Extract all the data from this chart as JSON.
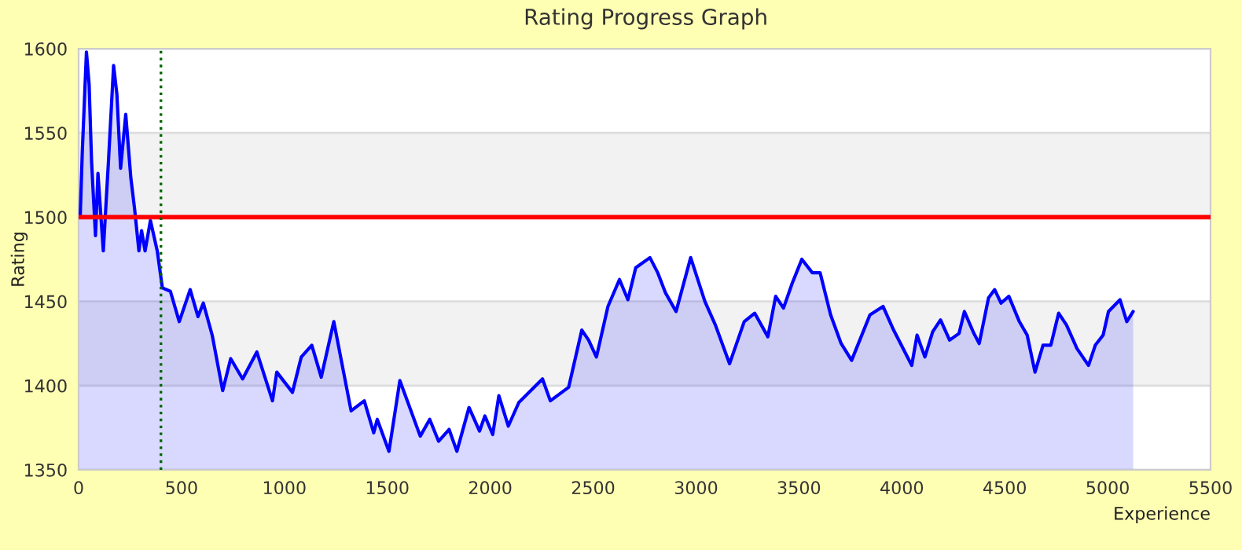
{
  "chart_data": {
    "type": "area",
    "title": "Rating Progress Graph",
    "xlabel": "Experience",
    "ylabel": "Rating",
    "xlim": [
      0,
      5500
    ],
    "xticks": [
      0,
      500,
      1000,
      1500,
      2000,
      2500,
      3000,
      3500,
      4000,
      4500,
      5000,
      5500
    ],
    "ylim": [
      1350,
      1600
    ],
    "yticks": [
      1350,
      1400,
      1450,
      1500,
      1550,
      1600
    ],
    "grid": "y",
    "ref_lines": [
      {
        "axis": "y",
        "value": 1500,
        "color": "#ff0000",
        "line_style": "solid"
      },
      {
        "axis": "x",
        "value": 400,
        "color": "#006400",
        "line_style": "dotted"
      }
    ],
    "bands": [
      {
        "axis": "y",
        "from": 1400,
        "to": 1450,
        "color": "#f2f2f2"
      },
      {
        "axis": "y",
        "from": 1500,
        "to": 1550,
        "color": "#f2f2f2"
      }
    ],
    "series": [
      {
        "color": "#0000ff",
        "x": [
          0,
          8,
          18,
          38,
          51,
          63,
          82,
          94,
          120,
          145,
          170,
          186,
          204,
          229,
          254,
          272,
          293,
          306,
          323,
          349,
          382,
          407,
          446,
          489,
          542,
          580,
          606,
          649,
          700,
          739,
          797,
          866,
          942,
          963,
          1039,
          1082,
          1133,
          1179,
          1240,
          1324,
          1388,
          1434,
          1451,
          1508,
          1561,
          1660,
          1706,
          1749,
          1800,
          1838,
          1897,
          1948,
          1974,
          2012,
          2042,
          2088,
          2139,
          2254,
          2292,
          2381,
          2445,
          2478,
          2516,
          2572,
          2628,
          2669,
          2707,
          2776,
          2814,
          2852,
          2903,
          2974,
          3043,
          3094,
          3163,
          3234,
          3285,
          3349,
          3387,
          3425,
          3468,
          3514,
          3565,
          3603,
          3654,
          3705,
          3756,
          3845,
          3909,
          3960,
          4048,
          4074,
          4112,
          4150,
          4188,
          4232,
          4278,
          4304,
          4350,
          4376,
          4421,
          4451,
          4482,
          4520,
          4571,
          4609,
          4647,
          4686,
          4724,
          4762,
          4800,
          4851,
          4907,
          4940,
          4978,
          5004,
          5060,
          5093,
          5124
        ],
        "values": [
          1500,
          1501,
          1539,
          1598,
          1579,
          1533,
          1489,
          1526,
          1480,
          1533,
          1590,
          1573,
          1529,
          1561,
          1523,
          1505,
          1480,
          1492,
          1480,
          1498,
          1480,
          1458,
          1456,
          1438,
          1457,
          1441,
          1449,
          1430,
          1397,
          1416,
          1404,
          1420,
          1391,
          1408,
          1396,
          1417,
          1424,
          1405,
          1438,
          1385,
          1391,
          1372,
          1380,
          1361,
          1403,
          1370,
          1380,
          1367,
          1374,
          1361,
          1387,
          1373,
          1382,
          1371,
          1394,
          1376,
          1390,
          1404,
          1391,
          1399,
          1433,
          1427,
          1417,
          1447,
          1463,
          1451,
          1470,
          1476,
          1467,
          1455,
          1444,
          1476,
          1450,
          1436,
          1413,
          1438,
          1443,
          1429,
          1453,
          1446,
          1461,
          1475,
          1467,
          1467,
          1442,
          1425,
          1415,
          1442,
          1447,
          1433,
          1412,
          1430,
          1417,
          1432,
          1439,
          1427,
          1431,
          1444,
          1431,
          1425,
          1452,
          1457,
          1449,
          1453,
          1438,
          1430,
          1408,
          1424,
          1424,
          1443,
          1436,
          1422,
          1412,
          1424,
          1430,
          1444,
          1451,
          1438,
          1444
        ]
      }
    ]
  }
}
